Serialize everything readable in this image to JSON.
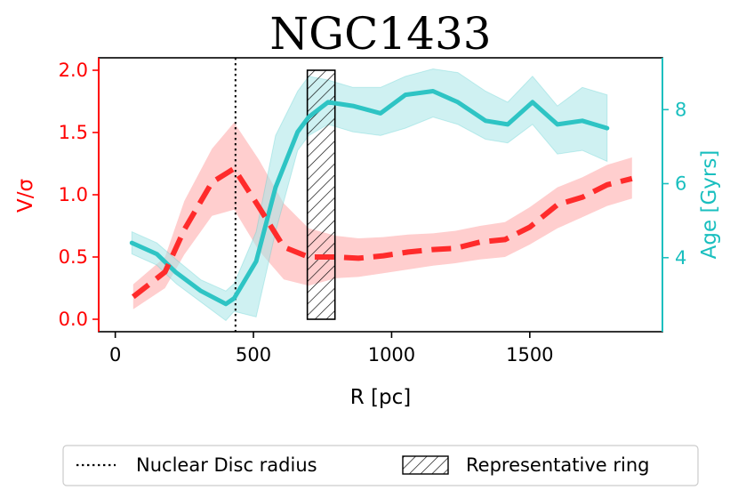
{
  "chart_data": {
    "type": "line",
    "title": "NGC1433",
    "xlabel": "R [pc]",
    "ylabel_left": "V/σ",
    "ylabel_right": "Age [Gyrs]",
    "xlim": [
      -60,
      1980
    ],
    "ylim_left": [
      -0.1,
      2.1
    ],
    "ylim_right": [
      2.0,
      9.4
    ],
    "x_ticks": [
      0,
      500,
      1000,
      1500
    ],
    "x_tick_labels": [
      "0",
      "500",
      "1000",
      "1500"
    ],
    "left_ticks": [
      0.0,
      0.5,
      1.0,
      1.5,
      2.0
    ],
    "left_tick_labels": [
      "0.0",
      "0.5",
      "1.0",
      "1.5",
      "2.0"
    ],
    "right_ticks": [
      4,
      6,
      8
    ],
    "right_tick_labels": [
      "4",
      "6",
      "8"
    ],
    "colors": {
      "vsigma": "#ff2b2b",
      "vsigma_band": "#ffb3b3",
      "age": "#2ec4c4",
      "age_band": "#a8e6e8",
      "left_axis": "#ff0000",
      "right_axis": "#1abfbf"
    },
    "series": [
      {
        "name": "V/σ",
        "axis": "left",
        "style": "dashed",
        "x": [
          65,
          180,
          250,
          350,
          430,
          520,
          610,
          700,
          800,
          880,
          970,
          1060,
          1150,
          1230,
          1320,
          1410,
          1500,
          1600,
          1690,
          1780,
          1870
        ],
        "values": [
          0.18,
          0.38,
          0.72,
          1.1,
          1.21,
          0.9,
          0.58,
          0.5,
          0.5,
          0.49,
          0.51,
          0.54,
          0.56,
          0.57,
          0.62,
          0.64,
          0.74,
          0.92,
          0.98,
          1.08,
          1.13
        ],
        "lower": [
          0.08,
          0.25,
          0.52,
          0.83,
          0.88,
          0.55,
          0.32,
          0.27,
          0.33,
          0.34,
          0.37,
          0.4,
          0.43,
          0.45,
          0.48,
          0.5,
          0.6,
          0.73,
          0.82,
          0.91,
          0.97
        ],
        "upper": [
          0.28,
          0.5,
          0.95,
          1.37,
          1.58,
          1.28,
          0.93,
          0.73,
          0.67,
          0.65,
          0.66,
          0.68,
          0.69,
          0.71,
          0.75,
          0.78,
          0.9,
          1.06,
          1.14,
          1.24,
          1.3
        ]
      },
      {
        "name": "Age",
        "axis": "right",
        "style": "solid",
        "x": [
          60,
          150,
          220,
          310,
          400,
          430,
          510,
          580,
          660,
          700,
          770,
          860,
          960,
          1050,
          1150,
          1240,
          1340,
          1420,
          1510,
          1600,
          1690,
          1780
        ],
        "values": [
          4.4,
          4.1,
          3.6,
          3.1,
          2.75,
          2.9,
          3.9,
          5.9,
          7.4,
          7.8,
          8.2,
          8.1,
          7.9,
          8.4,
          8.5,
          8.2,
          7.7,
          7.6,
          8.2,
          7.6,
          7.7,
          7.5
        ],
        "lower": [
          4.1,
          3.8,
          3.3,
          2.8,
          2.3,
          2.55,
          2.4,
          4.7,
          6.9,
          7.3,
          7.6,
          7.4,
          7.3,
          7.5,
          7.8,
          7.6,
          7.2,
          7.1,
          7.6,
          6.8,
          6.9,
          6.6
        ],
        "upper": [
          4.7,
          4.4,
          3.95,
          3.4,
          3.1,
          3.3,
          4.7,
          7.3,
          8.5,
          8.9,
          8.8,
          8.6,
          8.6,
          8.9,
          9.1,
          9.0,
          8.5,
          8.2,
          8.9,
          8.1,
          8.6,
          8.4
        ]
      }
    ],
    "annotations": {
      "nuclear_disc_radius": 435,
      "representative_ring": [
        695,
        795
      ],
      "ring_vsigma_range": [
        0.0,
        2.0
      ]
    },
    "legend": {
      "placement": "bottom-center",
      "entries": [
        "Nuclear Disc radius",
        "Representative ring"
      ]
    }
  }
}
